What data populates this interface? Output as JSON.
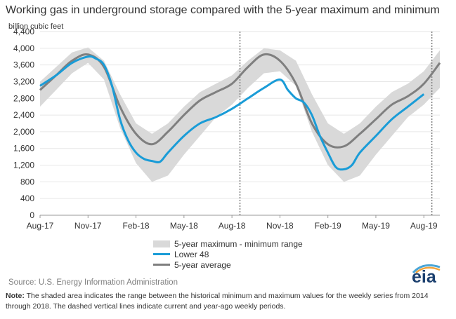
{
  "title": "Working gas in underground  storage compared with the 5-year maximum and minimum",
  "y_axis_label": "billion cubic feet",
  "legend": {
    "band": "5-year maximum - minimum range",
    "lower48": "Lower 48",
    "avg": "5-year average"
  },
  "source": "Source:  U.S. Energy Information Administration",
  "note_label": "Note:",
  "note_text": "The shaded area indicates the range between the historical minimum and maximum values for the weekly series from 2014 through 2018. The dashed vertical lines indicate current and year-ago weekly periods.",
  "logo_text": "eia",
  "colors": {
    "band": "#d9d9d9",
    "lower48": "#1a9cd7",
    "avg": "#7f7f7f",
    "grid": "#e6e6e6",
    "dashed": "#7f7f7f"
  },
  "chart_data": {
    "type": "area",
    "xlabel": "",
    "ylabel": "billion cubic feet",
    "ylim": [
      0,
      4400
    ],
    "yticks": [
      0,
      400,
      800,
      1200,
      1600,
      2000,
      2400,
      2800,
      3200,
      3600,
      4000,
      4400
    ],
    "x_tick_labels": [
      "Aug-17",
      "Nov-17",
      "Feb-18",
      "May-18",
      "Aug-18",
      "Nov-18",
      "Feb-19",
      "May-19",
      "Aug-19"
    ],
    "xlim_months": [
      0,
      25
    ],
    "grid": true,
    "current_week_markers": [
      12.5,
      24.5
    ],
    "series": [
      {
        "name": "5-year maximum - minimum range",
        "kind": "band",
        "x": [
          0,
          1,
          2,
          3,
          4,
          5,
          6,
          7,
          8,
          9,
          10,
          11,
          12,
          13,
          14,
          15,
          16,
          17,
          18,
          19,
          20,
          21,
          22,
          23,
          24,
          25
        ],
        "max": [
          3200,
          3550,
          3900,
          4020,
          3700,
          2900,
          2200,
          1950,
          2200,
          2600,
          2950,
          3150,
          3350,
          3700,
          4000,
          3950,
          3700,
          2900,
          2200,
          1950,
          2200,
          2600,
          2950,
          3150,
          3450,
          3950
        ],
        "min": [
          2600,
          3000,
          3400,
          3650,
          3250,
          2100,
          1250,
          800,
          950,
          1450,
          1900,
          2350,
          2650,
          3050,
          3400,
          3450,
          3100,
          2000,
          1200,
          800,
          950,
          1450,
          1900,
          2350,
          2650,
          3050
        ]
      },
      {
        "name": "Lower 48",
        "x": [
          0,
          1,
          2,
          3,
          3.5,
          4,
          4.5,
          5,
          5.5,
          6,
          6.5,
          7,
          7.5,
          8,
          9,
          10,
          11,
          12,
          13,
          14,
          15,
          15.5,
          16,
          16.5,
          17,
          17.5,
          18,
          18.5,
          19,
          19.5,
          20,
          21,
          22,
          23,
          24
        ],
        "values": [
          3100,
          3350,
          3650,
          3800,
          3750,
          3600,
          3100,
          2300,
          1800,
          1500,
          1350,
          1300,
          1280,
          1500,
          1900,
          2200,
          2350,
          2550,
          2800,
          3050,
          3250,
          3000,
          2800,
          2700,
          2400,
          1900,
          1500,
          1150,
          1100,
          1200,
          1500,
          1900,
          2300,
          2600,
          2900
        ]
      },
      {
        "name": "5-year average",
        "x": [
          0,
          1,
          2,
          3,
          4,
          5,
          6,
          7,
          8,
          9,
          10,
          11,
          12,
          13,
          14,
          15,
          16,
          17,
          18,
          19,
          20,
          21,
          22,
          23,
          24,
          25
        ],
        "values": [
          3000,
          3350,
          3700,
          3850,
          3550,
          2600,
          1950,
          1700,
          2000,
          2400,
          2750,
          2950,
          3150,
          3550,
          3850,
          3700,
          3150,
          2200,
          1700,
          1650,
          1950,
          2300,
          2650,
          2850,
          3150,
          3650
        ]
      }
    ]
  }
}
